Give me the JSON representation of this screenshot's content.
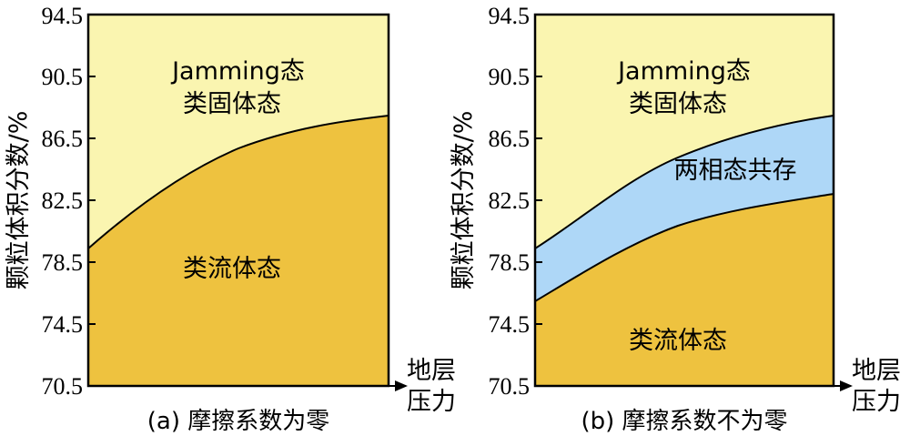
{
  "panels": [
    {
      "id": "a",
      "caption": "(a) 摩擦系数为零",
      "ylabel": "颗粒体积分数/%",
      "xlabel": [
        "地层",
        "压力"
      ],
      "yticks": [
        "70.5",
        "74.5",
        "78.5",
        "82.5",
        "86.5",
        "90.5",
        "94.5"
      ],
      "region_top": [
        "Jamming态",
        "类固体态"
      ],
      "region_bottom": "类流体态",
      "region_middle": "",
      "colors": {
        "top": "#FAF5B0",
        "middle": "#AED7F7",
        "bottom": "#EEC23F"
      }
    },
    {
      "id": "b",
      "caption": "(b) 摩擦系数不为零",
      "ylabel": "颗粒体积分数/%",
      "xlabel": [
        "地层",
        "压力"
      ],
      "yticks": [
        "70.5",
        "74.5",
        "78.5",
        "82.5",
        "86.5",
        "90.5",
        "94.5"
      ],
      "region_top": [
        "Jamming态",
        "类固体态"
      ],
      "region_bottom": "类流体态",
      "region_middle": "两相态共存",
      "colors": {
        "top": "#FAF5B0",
        "middle": "#AED7F7",
        "bottom": "#EEC23F"
      }
    }
  ]
}
